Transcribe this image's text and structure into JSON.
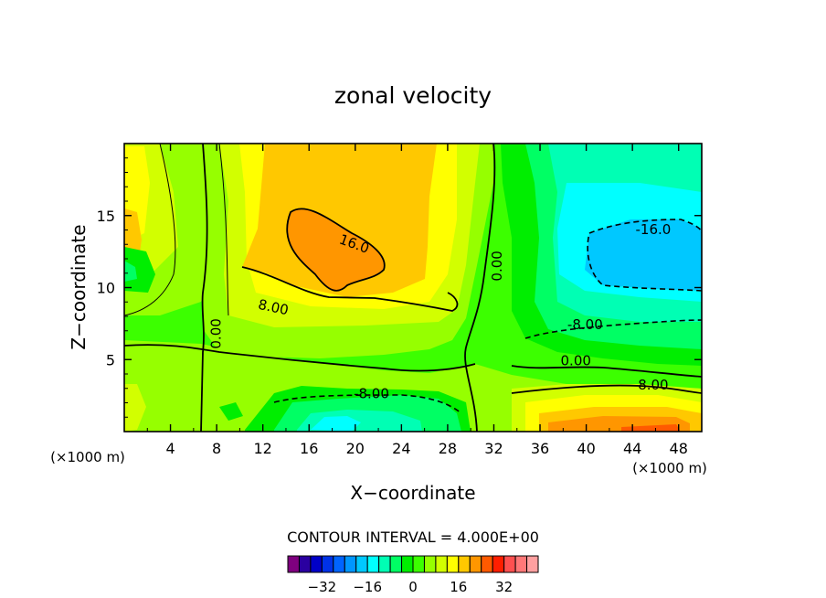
{
  "chart_data": {
    "type": "heatmap",
    "title": "zonal velocity",
    "xlabel": "X−coordinate",
    "ylabel": "Z−coordinate",
    "x_unit_left": "(×1000 m)",
    "x_unit_right": "(×1000 m)",
    "xlim": [
      0,
      50
    ],
    "ylim": [
      0,
      20
    ],
    "x_ticks": [
      4,
      8,
      12,
      16,
      20,
      24,
      28,
      32,
      36,
      40,
      44,
      48
    ],
    "y_ticks": [
      5,
      10,
      15
    ],
    "contour_interval_text": "CONTOUR INTERVAL = 4.000E+00",
    "contour_interval": 4,
    "contour_labels": [
      {
        "text": "16.0",
        "x": 19.9,
        "y": 13.0
      },
      {
        "text": "8.00",
        "x": 12.9,
        "y": 8.6
      },
      {
        "text": "0.00",
        "x": 8.0,
        "y": 6.8
      },
      {
        "text": "0.00",
        "x": 32.3,
        "y": 11.5
      },
      {
        "text": "-16.0",
        "x": 45.8,
        "y": 14.0
      },
      {
        "text": "-8.00",
        "x": 39.9,
        "y": 7.4
      },
      {
        "text": "0.00",
        "x": 39.1,
        "y": 4.9
      },
      {
        "text": "8.00",
        "x": 45.8,
        "y": 3.2
      },
      {
        "text": "-8.00",
        "x": 21.4,
        "y": 2.6
      }
    ],
    "colorbar": {
      "levels": [
        -40,
        -36,
        -32,
        -28,
        -24,
        -20,
        -16,
        -12,
        -8,
        -4,
        0,
        4,
        8,
        12,
        16,
        20,
        24,
        28,
        32,
        36,
        40
      ],
      "colors": [
        "#7f007f",
        "#2a00a0",
        "#0000c8",
        "#0032e6",
        "#0064ff",
        "#0096ff",
        "#00c8ff",
        "#00ffff",
        "#00ffb4",
        "#00ff64",
        "#00ee00",
        "#3cff00",
        "#96ff00",
        "#d2ff00",
        "#ffff00",
        "#ffc800",
        "#ff9600",
        "#ff5a00",
        "#ff1e00",
        "#ff5050",
        "#ff7878",
        "#ffa0a0"
      ],
      "tick_labels": [
        "−32",
        "−16",
        "0",
        "16",
        "32"
      ],
      "tick_values": [
        -32,
        -16,
        0,
        16,
        32
      ]
    },
    "grid": false,
    "legend": "colorbar bottom"
  }
}
